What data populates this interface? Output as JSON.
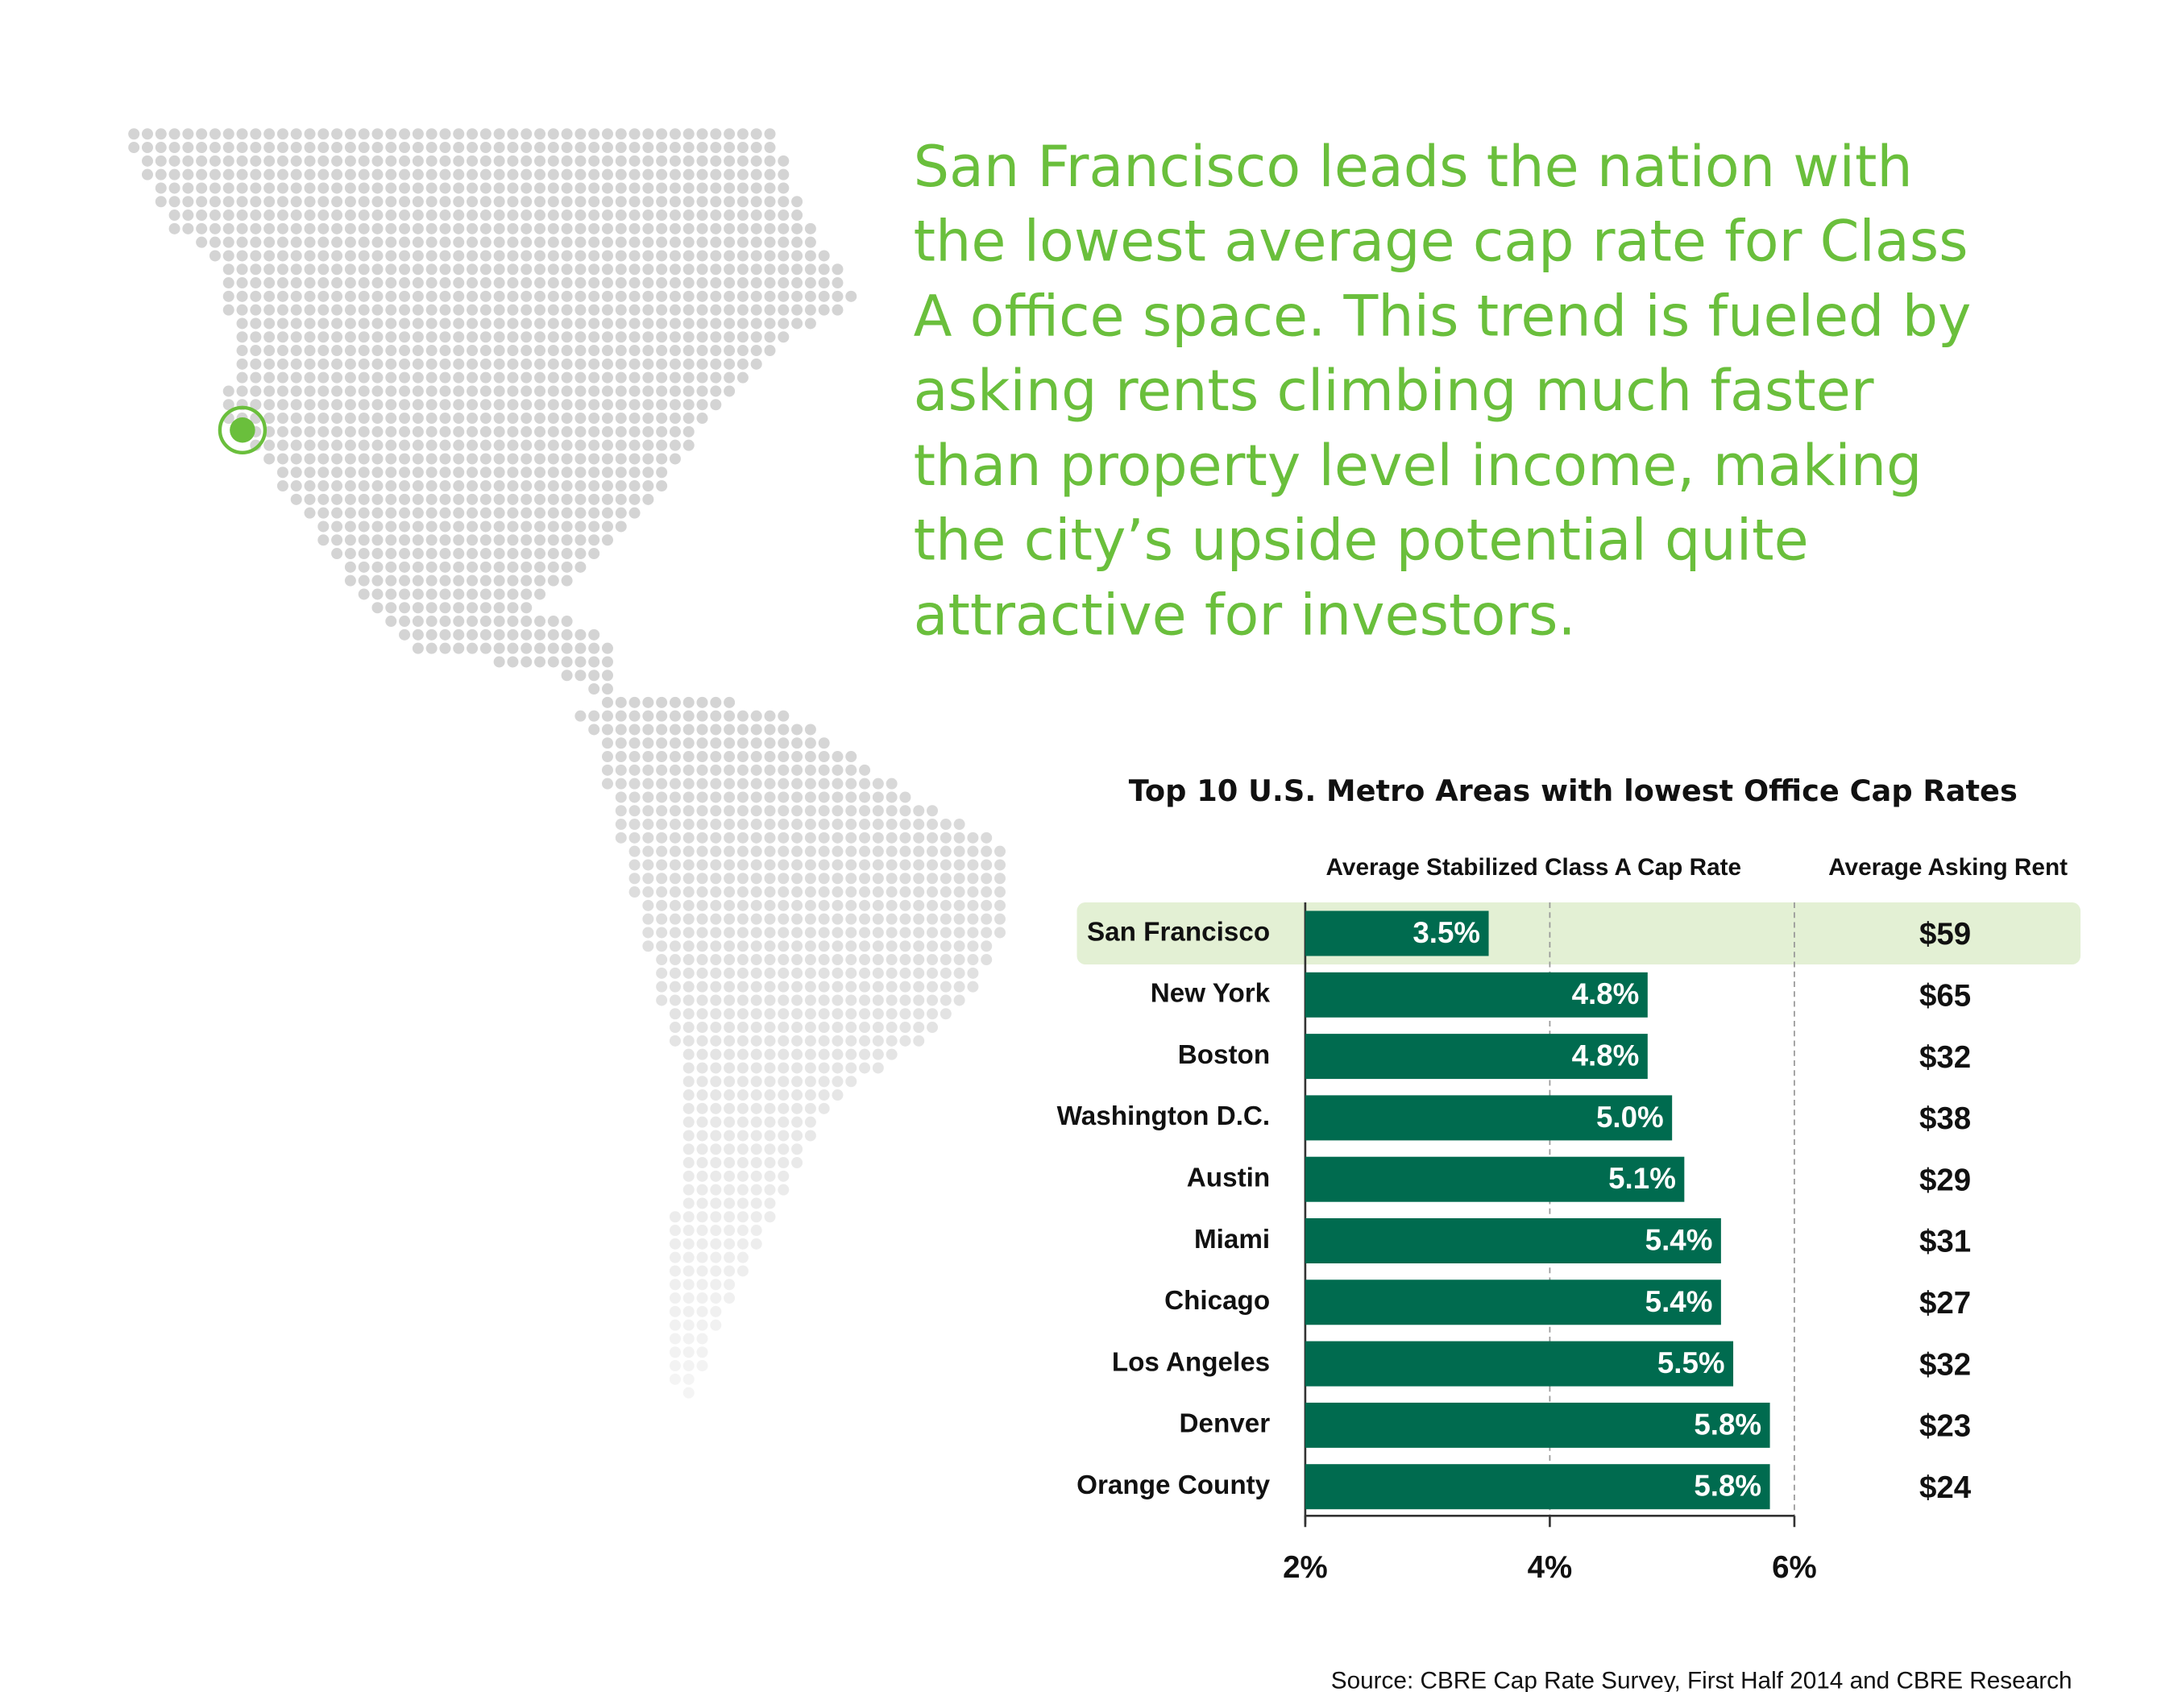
{
  "chart_data": {
    "type": "bar",
    "orientation": "horizontal",
    "headline_lines": [
      "San Francisco leads the nation with",
      "the lowest average cap rate for Class",
      "A office space. This trend is fueled by",
      "asking rents climbing much faster",
      "than property level income, making",
      "the city’s upside potential quite",
      "attractive for investors."
    ],
    "title": "Top 10 U.S. Metro Areas with lowest Office Cap Rates",
    "value_header": "Average Stabilized Class A Cap Rate",
    "rent_header": "Average Asking Rent",
    "categories": [
      "San Francisco",
      "New York",
      "Boston",
      "Washington D.C.",
      "Austin",
      "Miami",
      "Chicago",
      "Los Angeles",
      "Denver",
      "Orange County"
    ],
    "values": [
      3.5,
      4.8,
      4.8,
      5.0,
      5.1,
      5.4,
      5.4,
      5.5,
      5.8,
      5.8
    ],
    "value_labels": [
      "3.5%",
      "4.8%",
      "4.8%",
      "5.0%",
      "5.1%",
      "5.4%",
      "5.4%",
      "5.5%",
      "5.8%",
      "5.8%"
    ],
    "rents": [
      "$59",
      "$65",
      "$32",
      "$38",
      "$29",
      "$31",
      "$27",
      "$32",
      "$23",
      "$24"
    ],
    "highlight": 0,
    "color": "#006b4f",
    "highlight_color": "#e3f0d4",
    "xlim": [
      2,
      6
    ],
    "xticks": [
      {
        "value": 2,
        "label": "2%"
      },
      {
        "value": 4,
        "label": "4%"
      },
      {
        "value": 6,
        "label": "6%"
      }
    ],
    "grid": true,
    "source": "Source:  CBRE Cap Rate Survey, First Half 2014 and CBRE Research"
  }
}
